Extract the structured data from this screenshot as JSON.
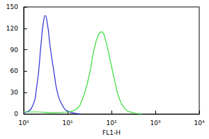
{
  "chart_data": {
    "type": "line",
    "x_label": "FL1-H",
    "log": "x",
    "grid": false,
    "xlim": [
      1,
      10000
    ],
    "xticks": [
      {
        "value": 1,
        "label": "10⁰"
      },
      {
        "value": 10,
        "label": "10¹"
      },
      {
        "value": 100,
        "label": "10²"
      },
      {
        "value": 1000,
        "label": "10³"
      },
      {
        "value": 10000,
        "label": "10⁴"
      }
    ],
    "ylim": [
      0,
      150
    ],
    "yticks": [
      0,
      30,
      60,
      90,
      120,
      150
    ],
    "series": [
      {
        "color": "#2b2bd6",
        "x": [
          1,
          1.5,
          2,
          2.5,
          2.8,
          3.1,
          3.5,
          4,
          5,
          6,
          8,
          10,
          15,
          20
        ],
        "values": [
          2,
          8,
          40,
          100,
          128,
          138,
          125,
          95,
          55,
          28,
          10,
          4,
          1,
          0
        ]
      },
      {
        "color": "#33dd33",
        "x": [
          1,
          2,
          5,
          10,
          15,
          20,
          30,
          40,
          50,
          60,
          70,
          90,
          120,
          150,
          200,
          300,
          500
        ],
        "values": [
          3,
          3,
          2,
          3,
          6,
          15,
          50,
          90,
          110,
          115,
          108,
          80,
          45,
          22,
          8,
          2,
          0
        ]
      }
    ]
  }
}
